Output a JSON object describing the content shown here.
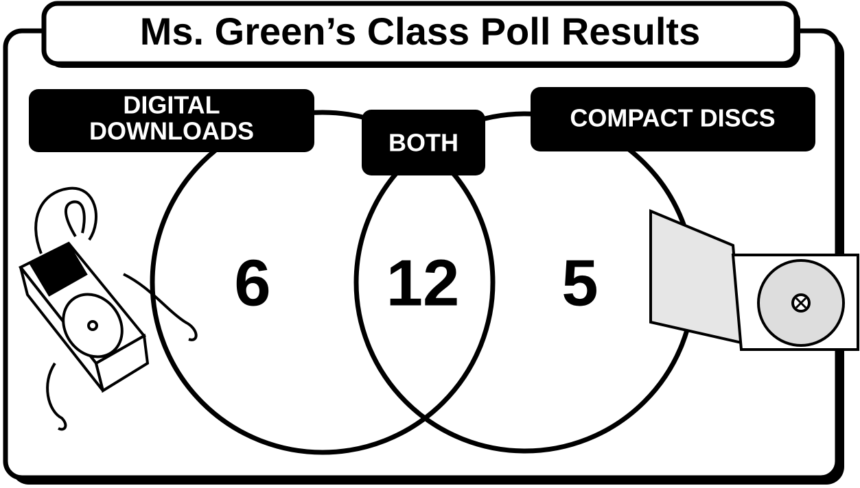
{
  "title": "Ms. Green’s Class Poll Results",
  "sets": [
    {
      "label_lines": [
        "DIGITAL",
        "DOWNLOADS"
      ],
      "count": 6
    },
    {
      "label_lines": [
        "COMPACT DISCS"
      ],
      "count": 5
    }
  ],
  "overlap": {
    "label": "BOTH",
    "count": 12
  }
}
